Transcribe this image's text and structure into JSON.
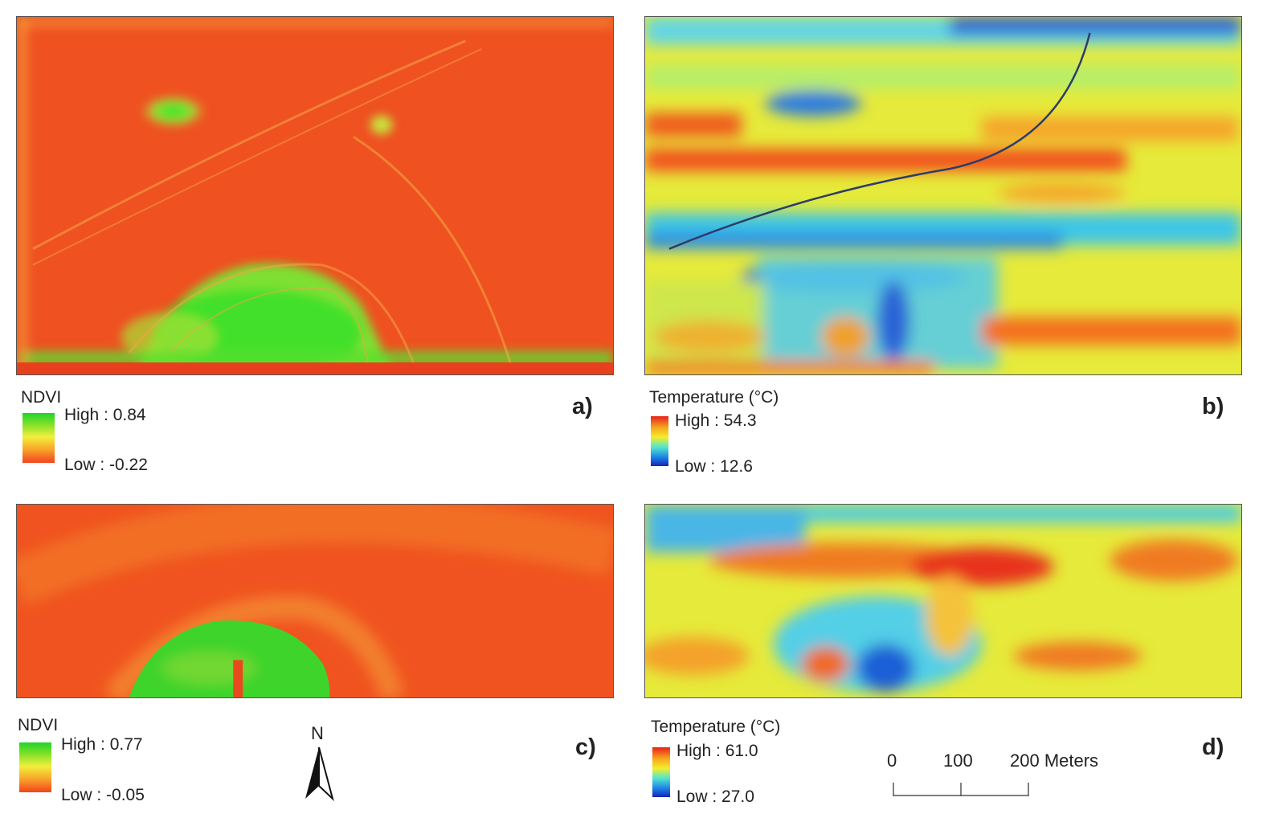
{
  "panels": {
    "a": {
      "label": "a)",
      "legend": {
        "title": "NDVI",
        "high": "High : 0.84",
        "low": "Low : -0.22"
      },
      "colors": {
        "base": "#ef4b1f",
        "high": "#2ee62a",
        "mid": "#f6e23a"
      }
    },
    "b": {
      "label": "b)",
      "legend": {
        "title": "Temperature (°C)",
        "high": "High : 54.3",
        "low": "Low : 12.6"
      },
      "colors": {
        "warm": "#f24a1c",
        "mid": "#f2ee38",
        "cool": "#46d2e6",
        "cold": "#1a50d6"
      }
    },
    "c": {
      "label": "c)",
      "legend": {
        "title": "NDVI",
        "high": "High : 0.77",
        "low": "Low : -0.05"
      },
      "colors": {
        "base": "#f0531f",
        "high": "#2edc2a"
      }
    },
    "d": {
      "label": "d)",
      "legend": {
        "title": "Temperature (°C)",
        "high": "High : 61.0",
        "low": "Low : 27.0"
      },
      "colors": {
        "warm": "#f24a1c",
        "mid": "#f2ee38",
        "cool": "#46d2e6",
        "cold": "#1a50d6"
      }
    }
  },
  "scale_bar": {
    "ticks": [
      "0",
      "100",
      "200 Meters"
    ]
  },
  "north_arrow": {
    "letter": "N",
    "icon": "north-arrow-icon"
  }
}
